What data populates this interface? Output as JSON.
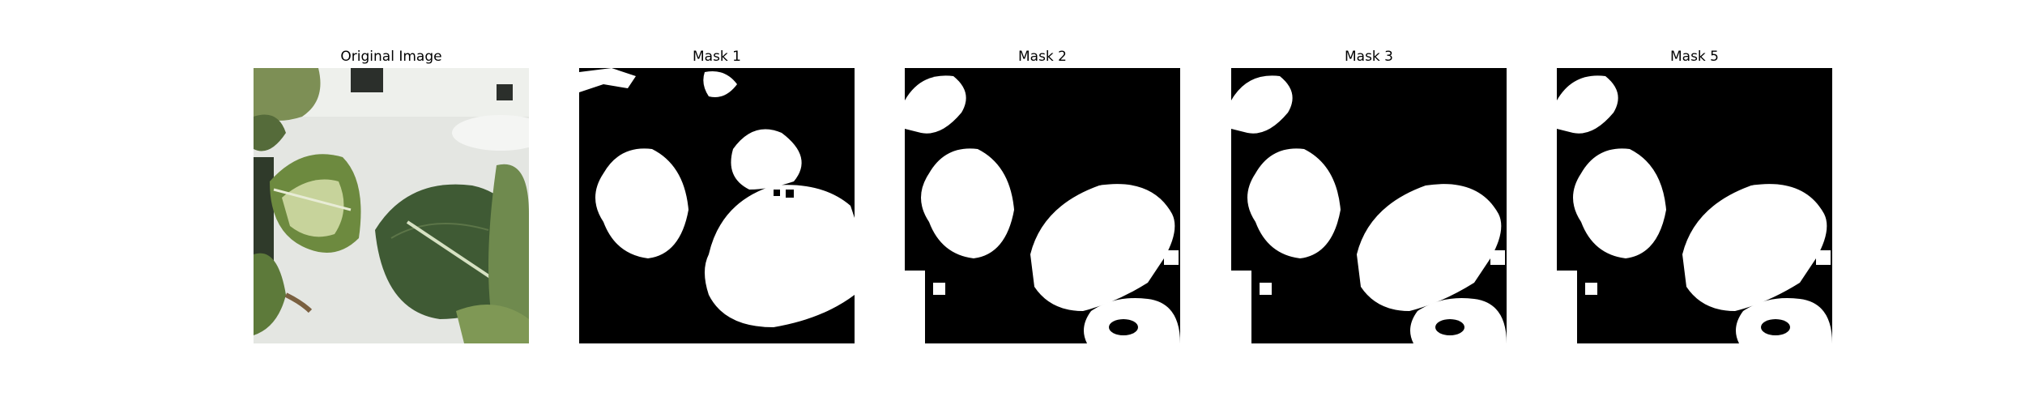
{
  "panels": [
    {
      "title": "Original Image"
    },
    {
      "title": "Mask 1"
    },
    {
      "title": "Mask 2"
    },
    {
      "title": "Mask 3"
    },
    {
      "title": "Mask 5"
    }
  ],
  "colors": {
    "mask_background": "#000000",
    "mask_foreground": "#ffffff",
    "tray": "#e6e8e4",
    "leaf_dark": "#3f5a34",
    "leaf_mid": "#6f8a4e",
    "leaf_light": "#c9d4a0"
  }
}
